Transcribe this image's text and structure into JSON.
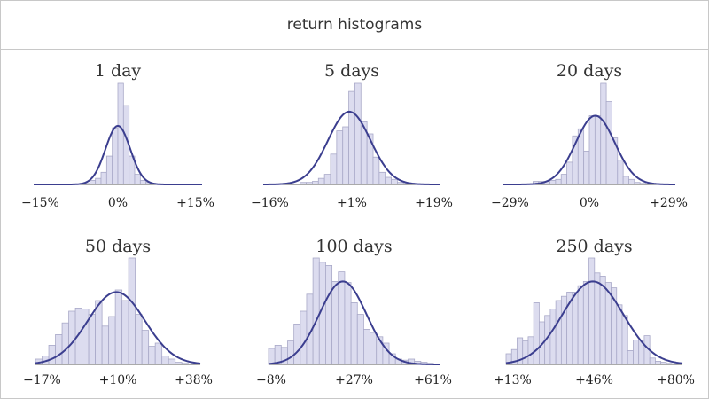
{
  "header": {
    "title": "return histograms"
  },
  "colors": {
    "bar_fill": "#dcdcef",
    "bar_stroke": "#a9a9c8",
    "curve": "#3b3e8f",
    "axis": "#555555"
  },
  "chart_data": [
    {
      "type": "bar",
      "title": "1 day",
      "tick_labels": [
        "−15%",
        "0%",
        "+15%"
      ],
      "x": [
        -13.5,
        -12.5,
        -11.5,
        -10.5,
        -9.5,
        -8.5,
        -7.5,
        -6.5,
        -5.5,
        -4.5,
        -3.5,
        -2.5,
        -1.5,
        -0.5,
        0.5,
        1.5,
        2.5,
        3.5,
        4.5,
        5.5,
        6.5,
        7.5,
        8.5,
        9.5,
        10.5,
        11.5,
        12.5,
        13.5
      ],
      "values": [
        0.003,
        0,
        0.003,
        0,
        0,
        0,
        0.005,
        0.005,
        0.01,
        0.04,
        0.06,
        0.12,
        0.28,
        0.56,
        1.0,
        0.78,
        0.28,
        0.1,
        0.04,
        0.02,
        0.01,
        0.003,
        0,
        0,
        0,
        0,
        0,
        0
      ],
      "fit": {
        "mean": 0,
        "sd": 2.2,
        "peak": 0.58
      },
      "xlim": [
        -15,
        15
      ],
      "ylim": [
        0,
        1
      ]
    },
    {
      "type": "bar",
      "title": "5 days",
      "tick_labels": [
        "−16%",
        "+1%",
        "+19%"
      ],
      "x": [
        -15.3,
        -14.1,
        -12.9,
        -11.7,
        -10.5,
        -9.3,
        -8.1,
        -6.9,
        -5.7,
        -4.5,
        -3.3,
        -2.1,
        -0.9,
        0.3,
        1.5,
        2.7,
        3.9,
        5.1,
        6.3,
        7.5,
        8.7,
        9.9,
        11.1,
        12.3,
        13.5,
        14.7,
        15.9,
        17.1,
        18.3
      ],
      "values": [
        0,
        0,
        0,
        0,
        0,
        0,
        0.02,
        0.02,
        0.03,
        0.06,
        0.1,
        0.3,
        0.53,
        0.57,
        0.92,
        1.0,
        0.62,
        0.5,
        0.27,
        0.12,
        0.07,
        0.05,
        0.02,
        0.01,
        0.005,
        0,
        0,
        0,
        0
      ],
      "fit": {
        "mean": 1,
        "sd": 4.2,
        "peak": 0.72
      },
      "xlim": [
        -16,
        19
      ],
      "ylim": [
        0,
        1
      ]
    },
    {
      "type": "bar",
      "title": "20 days",
      "tick_labels": [
        "−29%",
        "0%",
        "+29%"
      ],
      "x": [
        -27.55,
        -25.65,
        -23.75,
        -21.85,
        -19.95,
        -18.05,
        -16.15,
        -14.25,
        -12.35,
        -10.45,
        -8.55,
        -6.65,
        -4.75,
        -2.85,
        -0.95,
        0.95,
        2.85,
        4.75,
        6.65,
        8.55,
        10.45,
        12.35,
        14.25,
        16.15,
        18.05,
        19.95,
        21.85,
        23.75,
        25.65,
        27.55
      ],
      "values": [
        0,
        0,
        0,
        0,
        0,
        0.03,
        0.03,
        0.03,
        0.04,
        0.05,
        0.1,
        0.22,
        0.48,
        0.55,
        0.33,
        0.68,
        0.68,
        1.0,
        0.82,
        0.46,
        0.24,
        0.08,
        0.05,
        0.02,
        0.01,
        0,
        0,
        0,
        0,
        0
      ],
      "fit": {
        "mean": 2,
        "sd": 6.6,
        "peak": 0.68
      },
      "xlim": [
        -29,
        29
      ],
      "ylim": [
        0,
        1
      ]
    },
    {
      "type": "bar",
      "title": "50 days",
      "tick_labels": [
        "−17%",
        "+10%",
        "+38%"
      ],
      "x": [
        -15.88,
        -13.66,
        -11.44,
        -9.22,
        -7.0,
        -4.78,
        -2.56,
        -0.34,
        1.88,
        4.1,
        6.32,
        8.54,
        10.76,
        12.98,
        15.2,
        17.42,
        19.64,
        21.86,
        24.08,
        26.3,
        28.52,
        30.74,
        32.96,
        35.18,
        37.4
      ],
      "values": [
        0.05,
        0.08,
        0.18,
        0.28,
        0.39,
        0.5,
        0.53,
        0.52,
        0.47,
        0.6,
        0.36,
        0.45,
        0.7,
        0.6,
        1.0,
        0.47,
        0.32,
        0.17,
        0.2,
        0.08,
        0.05,
        0.02,
        0.01,
        0.005,
        0
      ],
      "fit": {
        "mean": 10,
        "sd": 9.5,
        "peak": 0.68
      },
      "xlim": [
        -17,
        38
      ],
      "ylim": [
        0,
        1
      ]
    },
    {
      "type": "bar",
      "title": "100 days",
      "tick_labels": [
        "−8%",
        "+27%",
        "+61%"
      ],
      "x": [
        -6.72,
        -4.16,
        -1.6,
        0.96,
        3.52,
        6.08,
        8.64,
        11.2,
        13.76,
        16.32,
        18.88,
        21.44,
        24.0,
        26.56,
        29.12,
        31.68,
        34.24,
        36.8,
        39.36,
        41.92,
        44.48,
        47.04,
        49.6,
        52.16,
        54.72,
        57.28,
        59.84
      ],
      "values": [
        0.15,
        0.18,
        0.16,
        0.22,
        0.38,
        0.5,
        0.66,
        1.0,
        0.96,
        0.93,
        0.78,
        0.87,
        0.77,
        0.58,
        0.47,
        0.33,
        0.3,
        0.26,
        0.2,
        0.1,
        0.05,
        0.04,
        0.05,
        0.03,
        0.02,
        0.01,
        0
      ],
      "fit": {
        "mean": 22,
        "sd": 9.5,
        "peak": 0.78
      },
      "xlim": [
        -8,
        61
      ],
      "ylim": [
        0,
        1
      ]
    },
    {
      "type": "bar",
      "title": "250 days",
      "tick_labels": [
        "+13%",
        "+46%",
        "+80%"
      ],
      "x": [
        14.05,
        16.15,
        18.25,
        20.35,
        22.45,
        24.55,
        26.65,
        28.75,
        30.85,
        32.95,
        35.05,
        37.15,
        39.25,
        41.35,
        43.45,
        45.55,
        47.65,
        49.75,
        51.85,
        53.95,
        56.05,
        58.15,
        60.25,
        62.35,
        64.45,
        66.55,
        68.65,
        70.75,
        72.85,
        74.95,
        77.05,
        79.15
      ],
      "values": [
        0.1,
        0.14,
        0.25,
        0.22,
        0.26,
        0.58,
        0.4,
        0.46,
        0.52,
        0.6,
        0.64,
        0.68,
        0.68,
        0.74,
        0.78,
        1.0,
        0.86,
        0.83,
        0.77,
        0.72,
        0.56,
        0.46,
        0.13,
        0.23,
        0.23,
        0.27,
        0.06,
        0.03,
        0.02,
        0.01,
        0.005,
        0
      ],
      "fit": {
        "mean": 46,
        "sd": 11.5,
        "peak": 0.78
      },
      "xlim": [
        13,
        80
      ],
      "ylim": [
        0,
        1
      ]
    }
  ]
}
